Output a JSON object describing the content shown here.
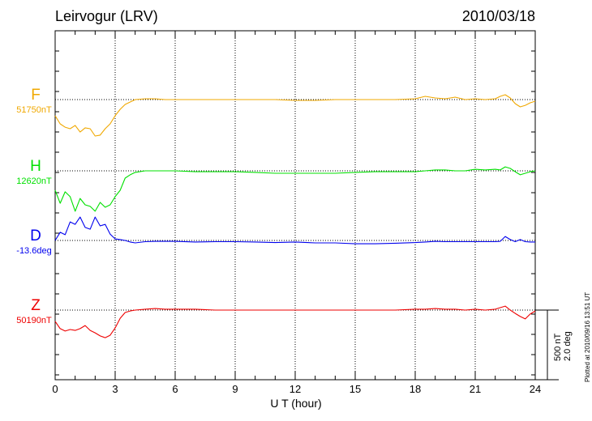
{
  "header": {
    "station": "Leirvogur (LRV)",
    "date": "2010/03/18"
  },
  "footer": {
    "plotted_at": "Plotted at 2010/09/16 13:51 UT"
  },
  "scale": {
    "nt": "500 nT",
    "deg": "2.0 deg"
  },
  "colors": {
    "F": "#f0a800",
    "H": "#00e000",
    "D": "#0000ee",
    "Z": "#ee0000",
    "grid": "#000000",
    "axis": "#000000"
  },
  "chart_data": {
    "type": "line",
    "xlabel": "U T (hour)",
    "xlim": [
      0,
      24
    ],
    "xticks": [
      "0",
      "3",
      "6",
      "9",
      "12",
      "15",
      "18",
      "21",
      "24"
    ],
    "grid": "dotted vertical lines every 3 h; dotted horizontal baseline per component",
    "scale_bar": "500 nT / 2.0 deg per 75 px",
    "x": [
      0,
      0.25,
      0.5,
      0.75,
      1,
      1.25,
      1.5,
      1.75,
      2,
      2.25,
      2.5,
      2.75,
      3,
      3.25,
      3.5,
      3.75,
      4,
      4.5,
      5,
      5.5,
      6,
      7,
      8,
      9,
      10,
      11,
      12,
      13,
      14,
      15,
      16,
      17,
      18,
      18.5,
      19,
      19.5,
      20,
      20.5,
      21,
      21.5,
      22,
      22.25,
      22.5,
      22.75,
      23,
      23.25,
      23.5,
      23.75,
      24
    ],
    "series": [
      {
        "name": "F",
        "baseline_label": "51750nT",
        "unit": "nT",
        "values": [
          -133,
          -200,
          -227,
          -240,
          -213,
          -267,
          -233,
          -240,
          -300,
          -293,
          -240,
          -200,
          -133,
          -80,
          -40,
          -20,
          0,
          7,
          7,
          0,
          0,
          0,
          0,
          0,
          0,
          0,
          -7,
          -7,
          0,
          0,
          0,
          0,
          7,
          27,
          13,
          7,
          20,
          0,
          7,
          0,
          7,
          27,
          40,
          13,
          -33,
          -60,
          -47,
          -27,
          -13
        ]
      },
      {
        "name": "H",
        "baseline_label": "12620nT",
        "unit": "nT",
        "values": [
          -160,
          -267,
          -173,
          -213,
          -333,
          -227,
          -280,
          -293,
          -333,
          -260,
          -300,
          -280,
          -213,
          -160,
          -60,
          -33,
          -13,
          0,
          0,
          0,
          0,
          -7,
          -7,
          -7,
          -13,
          -20,
          -20,
          -20,
          -20,
          -13,
          -7,
          -7,
          -7,
          0,
          7,
          7,
          0,
          0,
          13,
          7,
          13,
          7,
          33,
          20,
          -7,
          -33,
          -20,
          -7,
          0
        ]
      },
      {
        "name": "D",
        "baseline_label": "-13.6deg",
        "unit": "deg",
        "values": [
          0.0,
          0.27,
          0.19,
          0.61,
          0.53,
          0.77,
          0.43,
          0.37,
          0.77,
          0.48,
          0.53,
          0.21,
          0.05,
          0.03,
          0.0,
          -0.05,
          -0.08,
          -0.04,
          -0.03,
          -0.03,
          -0.03,
          -0.05,
          -0.04,
          -0.04,
          -0.05,
          -0.07,
          -0.05,
          -0.08,
          -0.08,
          -0.11,
          -0.11,
          -0.09,
          -0.07,
          -0.05,
          -0.03,
          -0.04,
          -0.04,
          -0.04,
          -0.04,
          -0.04,
          -0.04,
          -0.03,
          0.13,
          0.03,
          -0.04,
          0.03,
          -0.04,
          -0.05,
          -0.05
        ]
      },
      {
        "name": "Z",
        "baseline_label": "50190nT",
        "unit": "nT",
        "values": [
          -93,
          -153,
          -173,
          -160,
          -167,
          -153,
          -127,
          -167,
          -187,
          -213,
          -227,
          -207,
          -147,
          -67,
          -20,
          -7,
          0,
          7,
          13,
          7,
          7,
          7,
          0,
          0,
          0,
          0,
          0,
          0,
          0,
          0,
          0,
          0,
          7,
          7,
          13,
          7,
          7,
          0,
          7,
          0,
          7,
          20,
          33,
          0,
          -27,
          -53,
          -73,
          -33,
          -7
        ]
      }
    ]
  }
}
